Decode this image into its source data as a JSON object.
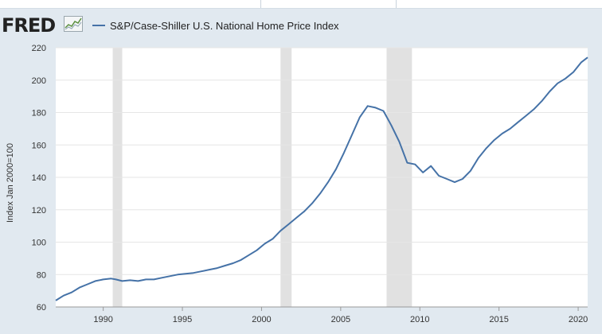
{
  "header": {
    "logo": "FRED",
    "legend_label": "S&P/Case-Shiller U.S. National Home Price Index"
  },
  "colors": {
    "series": "#4572a7",
    "recession": "#e1e1e1",
    "background": "#e1e9f0",
    "plot": "#ffffff"
  },
  "chart_data": {
    "type": "line",
    "title": "",
    "xlabel": "",
    "ylabel": "Index Jan 2000=100",
    "ylim": [
      60,
      220
    ],
    "xlim": [
      1987.0,
      2020.6
    ],
    "yticks": [
      60,
      80,
      100,
      120,
      140,
      160,
      180,
      200,
      220
    ],
    "xticks": [
      1990,
      1995,
      2000,
      2005,
      2010,
      2015,
      2020
    ],
    "grid": "horizontal",
    "legend_position": "top-left",
    "recessions": [
      [
        1990.6,
        1991.2
      ],
      [
        2001.2,
        2001.9
      ],
      [
        2007.9,
        2009.5
      ]
    ],
    "series": [
      {
        "name": "S&P/Case-Shiller U.S. National Home Price Index",
        "x": [
          1987.0,
          1987.5,
          1988.0,
          1988.5,
          1989.0,
          1989.5,
          1990.0,
          1990.5,
          1990.8,
          1991.2,
          1991.7,
          1992.2,
          1992.7,
          1993.2,
          1993.7,
          1994.2,
          1994.7,
          1995.2,
          1995.7,
          1996.2,
          1996.7,
          1997.2,
          1997.7,
          1998.2,
          1998.7,
          1999.2,
          1999.7,
          2000.2,
          2000.7,
          2001.2,
          2001.7,
          2002.2,
          2002.7,
          2003.2,
          2003.7,
          2004.2,
          2004.7,
          2005.2,
          2005.7,
          2006.2,
          2006.7,
          2007.2,
          2007.7,
          2008.2,
          2008.7,
          2009.2,
          2009.7,
          2010.2,
          2010.7,
          2011.2,
          2011.7,
          2012.2,
          2012.7,
          2013.2,
          2013.7,
          2014.2,
          2014.7,
          2015.2,
          2015.7,
          2016.2,
          2016.7,
          2017.2,
          2017.7,
          2018.2,
          2018.7,
          2019.2,
          2019.7,
          2020.2,
          2020.6
        ],
        "values": [
          64,
          67,
          69,
          72,
          74,
          76,
          77,
          77.5,
          77,
          76,
          76.5,
          76,
          77,
          77,
          78,
          79,
          80,
          80.5,
          81,
          82,
          83,
          84,
          85.5,
          87,
          89,
          92,
          95,
          99,
          102,
          107,
          111,
          115,
          119,
          124,
          130,
          137,
          145,
          155,
          166,
          177,
          184,
          183,
          181,
          172,
          162,
          149,
          148,
          143,
          147,
          141,
          139,
          137,
          139,
          144,
          152,
          158,
          163,
          167,
          170,
          174,
          178,
          182,
          187,
          193,
          198,
          201,
          205,
          211,
          214
        ]
      }
    ]
  }
}
